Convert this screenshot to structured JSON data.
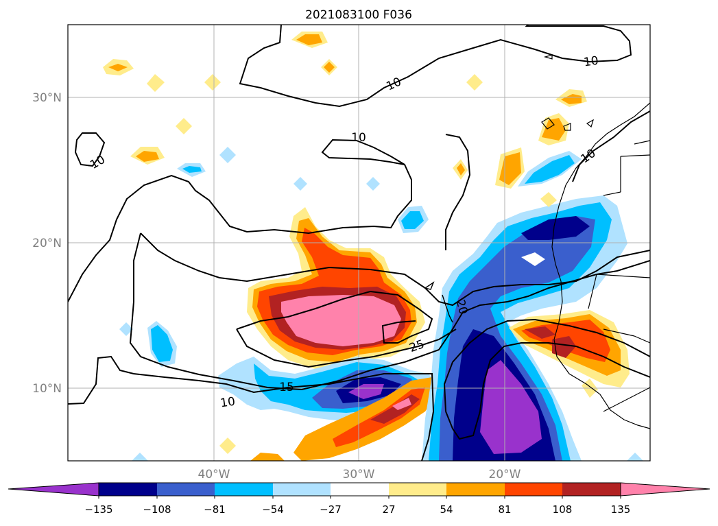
{
  "title": "2021083100 F036",
  "lat_labels": [
    "30°N",
    "20°N",
    "10°N"
  ],
  "lon_labels": [
    "40°W",
    "30°W",
    "20°W"
  ],
  "contour_labels": [
    "10",
    "10",
    "10",
    "10",
    "10",
    "10",
    "15",
    "20",
    "25"
  ],
  "colorbar": {
    "ticks": [
      "−135",
      "−108",
      "−81",
      "−54",
      "−27",
      "27",
      "54",
      "81",
      "108",
      "135"
    ],
    "colors": [
      "#9932cc",
      "#00008b",
      "#3a5fcd",
      "#00bfff",
      "#b0e2ff",
      "#ffffff",
      "#ffec8b",
      "#ffa500",
      "#ff4500",
      "#b22222",
      "#ff82ab"
    ]
  },
  "colors": {
    "tick_label": "#808080",
    "grid": "#b0b0b0",
    "contour": "#000000"
  }
}
